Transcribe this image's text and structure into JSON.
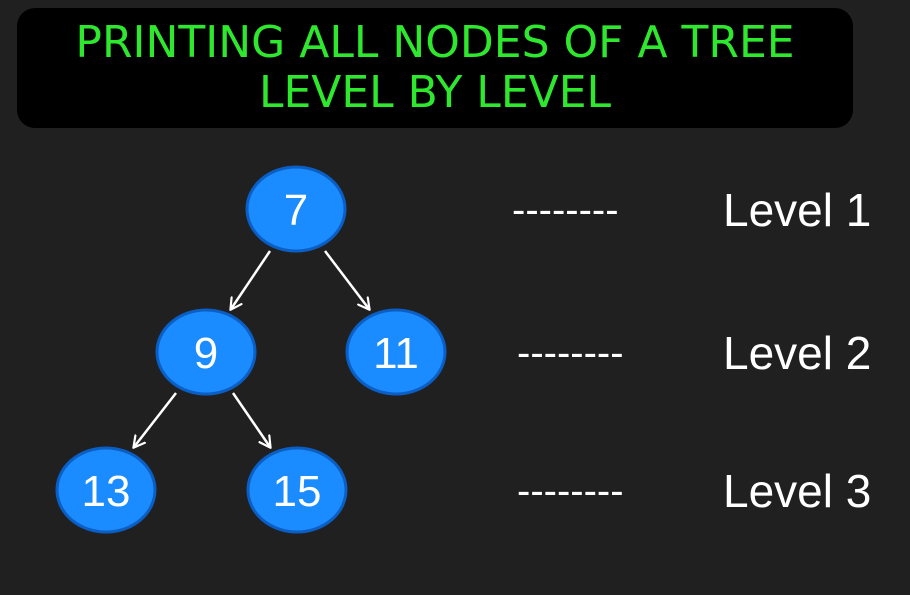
{
  "title": {
    "line1": "PRINTING ALL NODES OF A TREE",
    "line2": "LEVEL BY LEVEL"
  },
  "colors": {
    "background": "#202020",
    "title_box": "#000000",
    "title_text": "#2ee82e",
    "node_fill": "#1a8cff",
    "node_stroke": "#0b5fc4",
    "text": "#ffffff"
  },
  "tree": {
    "nodes": [
      {
        "id": "n7",
        "label": "7"
      },
      {
        "id": "n9",
        "label": "9"
      },
      {
        "id": "n11",
        "label": "11"
      },
      {
        "id": "n13",
        "label": "13"
      },
      {
        "id": "n15",
        "label": "15"
      }
    ],
    "edges": [
      {
        "from": "n7",
        "to": "n9"
      },
      {
        "from": "n7",
        "to": "n11"
      },
      {
        "from": "n9",
        "to": "n13"
      },
      {
        "from": "n9",
        "to": "n15"
      }
    ]
  },
  "levels": [
    {
      "dashes": "--------",
      "label": "Level 1"
    },
    {
      "dashes": "--------",
      "label": "Level 2"
    },
    {
      "dashes": "--------",
      "label": "Level 3"
    }
  ]
}
